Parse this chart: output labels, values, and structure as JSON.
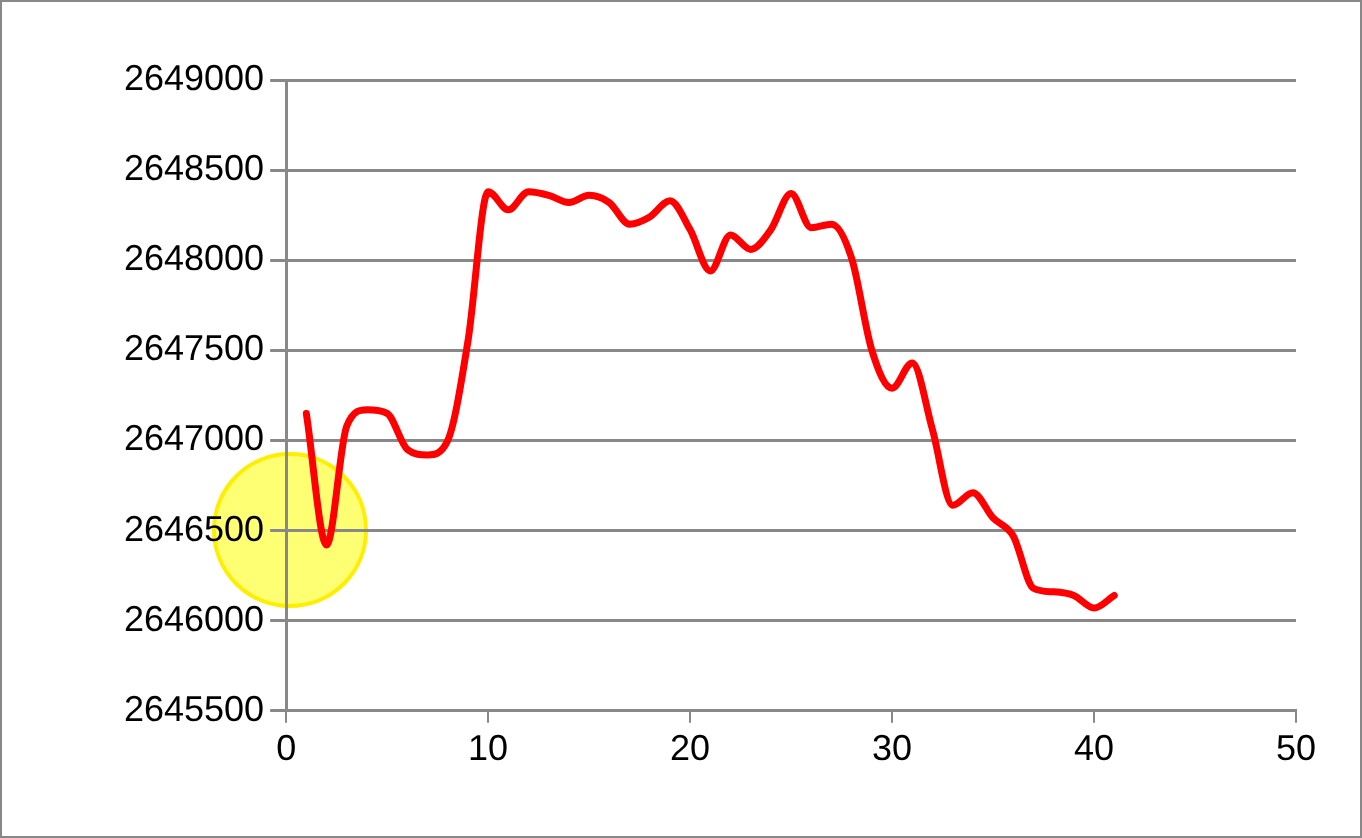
{
  "chart_data": {
    "type": "line",
    "x": [
      1,
      2,
      3,
      4,
      5,
      6,
      7,
      8,
      9,
      10,
      11,
      12,
      13,
      14,
      15,
      16,
      17,
      18,
      19,
      20,
      21,
      22,
      23,
      24,
      25,
      26,
      27,
      28,
      29,
      30,
      31,
      32,
      33,
      34,
      35,
      36,
      37,
      38,
      39,
      40,
      41
    ],
    "series": [
      {
        "color": "#ff0000",
        "values": [
          2647150,
          2646420,
          2647080,
          2647170,
          2647150,
          2646950,
          2646920,
          2647000,
          2647550,
          2648380,
          2648280,
          2648380,
          2648360,
          2648320,
          2648360,
          2648320,
          2648200,
          2648240,
          2648330,
          2648170,
          2647940,
          2648140,
          2648060,
          2648170,
          2648370,
          2648180,
          2648200,
          2648010,
          2647500,
          2647290,
          2647430,
          2647060,
          2646640,
          2646710,
          2646570,
          2646470,
          2646180,
          2646160,
          2646140,
          2646070,
          2646140
        ]
      }
    ],
    "xlim": [
      0,
      50
    ],
    "xticks": [
      0,
      10,
      20,
      30,
      40,
      50
    ],
    "ylim": [
      2645500,
      2649000
    ],
    "yticks": [
      2645500,
      2646000,
      2646500,
      2647000,
      2647500,
      2648000,
      2648500,
      2649000
    ],
    "grid": "y",
    "legend": false,
    "marker": "none",
    "line_style": "solid"
  }
}
